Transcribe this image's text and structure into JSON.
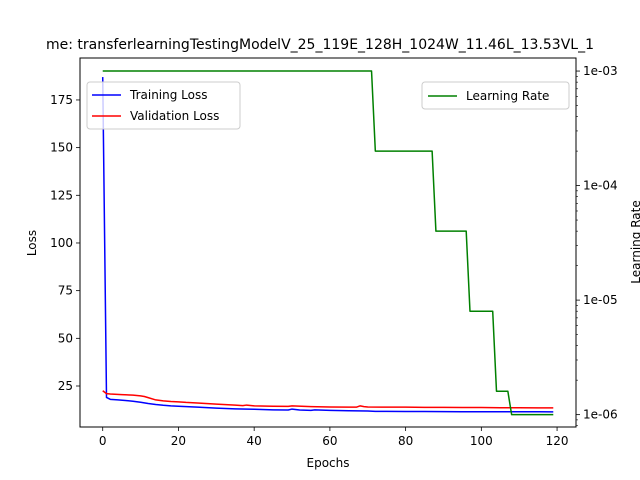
{
  "chart_data": {
    "type": "line",
    "title": "me: transferlearningTestingModelV_25_119E_128H_1024W_11.46L_13.53VL_1",
    "xlabel": "Epochs",
    "ylabel": "Loss",
    "y2label": "Learning Rate",
    "xlim": [
      -6,
      125
    ],
    "ylim": [
      3.5,
      197
    ],
    "y2lim": [
      7.8e-07,
      0.0013
    ],
    "y2scale": "log",
    "x_ticks": [
      0,
      20,
      40,
      60,
      80,
      100,
      120
    ],
    "y_ticks": [
      25,
      50,
      75,
      100,
      125,
      150,
      175
    ],
    "y2_ticks": [
      1e-06,
      1e-05,
      0.0001,
      0.001
    ],
    "y2_tick_labels": [
      "1e-06",
      "1e-05",
      "1e-04",
      "1e-03"
    ],
    "legend_left": {
      "placement": "upper-left",
      "entries": [
        "Training Loss",
        "Validation Loss"
      ]
    },
    "legend_right": {
      "placement": "upper-right",
      "entries": [
        "Learning Rate"
      ]
    },
    "series": [
      {
        "name": "Training Loss",
        "axis": "left",
        "color": "#0000ff",
        "x": [
          0,
          1,
          2,
          4,
          6,
          8,
          10,
          12,
          14,
          16,
          18,
          20,
          25,
          30,
          35,
          40,
          45,
          49,
          50,
          52,
          55,
          56,
          60,
          65,
          70,
          72,
          75,
          80,
          85,
          90,
          95,
          100,
          105,
          110,
          115,
          119
        ],
        "y": [
          187,
          19,
          18,
          17.7,
          17.4,
          17,
          16.5,
          15.8,
          15.3,
          14.9,
          14.6,
          14.4,
          13.9,
          13.4,
          13.0,
          12.8,
          12.5,
          12.4,
          12.9,
          12.4,
          12.2,
          12.5,
          12.2,
          12.0,
          11.9,
          11.7,
          11.7,
          11.6,
          11.6,
          11.55,
          11.5,
          11.5,
          11.5,
          11.5,
          11.47,
          11.46
        ]
      },
      {
        "name": "Validation Loss",
        "axis": "left",
        "color": "#ff0000",
        "x": [
          0,
          1,
          2,
          5,
          8,
          10,
          11,
          12,
          14,
          16,
          18,
          20,
          22,
          25,
          30,
          35,
          37,
          38,
          40,
          45,
          49,
          50,
          55,
          60,
          65,
          67,
          68,
          69,
          70,
          75,
          80,
          85,
          90,
          95,
          100,
          105,
          110,
          115,
          119
        ],
        "y": [
          22.5,
          21,
          20.8,
          20.5,
          20.2,
          19.8,
          19.5,
          18.9,
          17.7,
          17.2,
          16.9,
          16.7,
          16.4,
          16.1,
          15.5,
          15.0,
          14.7,
          15.0,
          14.6,
          14.4,
          14.3,
          14.6,
          14.2,
          14.0,
          13.9,
          13.9,
          14.6,
          14.2,
          14.0,
          13.9,
          13.9,
          13.8,
          13.8,
          13.7,
          13.7,
          13.6,
          13.6,
          13.55,
          13.53
        ]
      },
      {
        "name": "Learning Rate",
        "axis": "right",
        "color": "#008000",
        "x": [
          0,
          71,
          72,
          87,
          88,
          96,
          97,
          103,
          104,
          107,
          108,
          119
        ],
        "y": [
          0.001,
          0.001,
          0.0002,
          0.0002,
          4e-05,
          4e-05,
          8e-06,
          8e-06,
          1.6e-06,
          1.6e-06,
          1e-06,
          1e-06
        ]
      }
    ]
  }
}
